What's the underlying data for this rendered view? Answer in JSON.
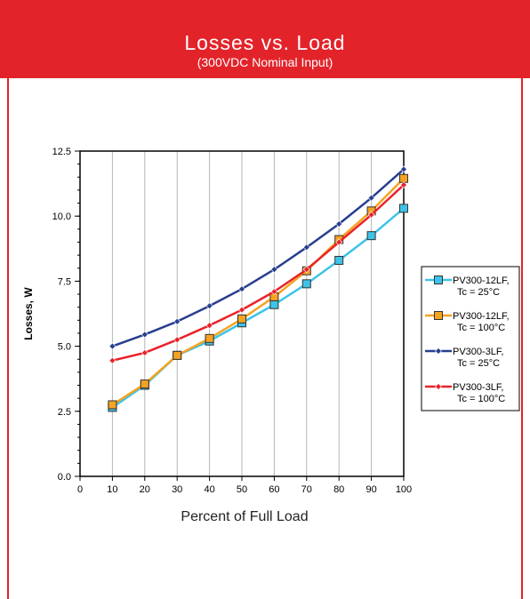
{
  "header": {
    "title": "Losses vs. Load",
    "subtitle": "(300VDC Nominal Input)"
  },
  "colors": {
    "banner": "#e3232a"
  },
  "chart_data": {
    "type": "line",
    "title": "Losses vs. Load",
    "subtitle": "(300VDC Nominal Input)",
    "xlabel": "Percent of Full Load",
    "ylabel": "Losses, W",
    "xlim": [
      0,
      100
    ],
    "ylim": [
      0,
      12.5
    ],
    "xticks": [
      "0",
      "10",
      "20",
      "30",
      "40",
      "50",
      "60",
      "70",
      "80",
      "90",
      "100"
    ],
    "yticks": [
      "0.0",
      "2.5",
      "5.0",
      "7.5",
      "10.0",
      "12.5"
    ],
    "grid": true,
    "legend_position": "right",
    "x": [
      10,
      20,
      30,
      40,
      50,
      60,
      70,
      80,
      90,
      100
    ],
    "series": [
      {
        "name": "PV300-12LF, Tc = 25°C",
        "line1": "PV300-12LF,",
        "line2": "Tc = 25°C",
        "color": "#3ec3e8",
        "marker": "square",
        "values": [
          2.65,
          3.5,
          4.65,
          5.2,
          5.9,
          6.6,
          7.4,
          8.3,
          9.25,
          10.3
        ]
      },
      {
        "name": "PV300-12LF, Tc = 100°C",
        "line1": "PV300-12LF,",
        "line2": "Tc = 100°C",
        "color": "#f5a321",
        "marker": "square",
        "values": [
          2.75,
          3.55,
          4.65,
          5.3,
          6.05,
          6.9,
          7.9,
          9.1,
          10.2,
          11.45
        ]
      },
      {
        "name": "PV300-3LF, Tc = 25°C",
        "line1": "PV300-3LF,",
        "line2": "Tc = 25°C",
        "color": "#283f8f",
        "marker": "diamond",
        "values": [
          5.0,
          5.45,
          5.95,
          6.55,
          7.2,
          7.95,
          8.8,
          9.7,
          10.7,
          11.8
        ]
      },
      {
        "name": "PV300-3LF, Tc = 100°C",
        "line1": "PV300-3LF,",
        "line2": "Tc = 100°C",
        "color": "#e8232a",
        "marker": "diamond",
        "values": [
          4.45,
          4.75,
          5.25,
          5.8,
          6.4,
          7.1,
          7.95,
          9.0,
          10.05,
          11.2
        ]
      }
    ]
  }
}
